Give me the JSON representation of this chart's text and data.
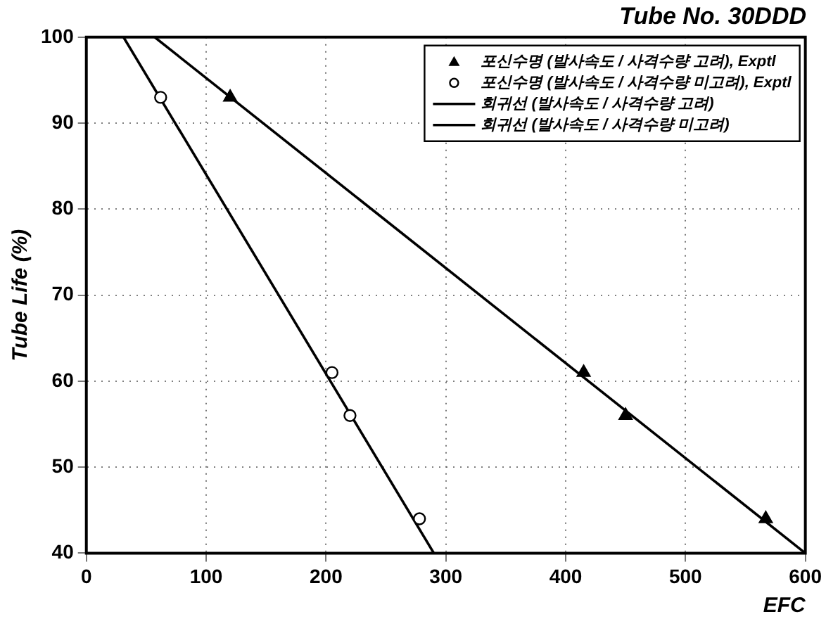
{
  "chart_data": {
    "type": "scatter",
    "title": "Tube No. 30DDD",
    "xlabel": "EFC",
    "ylabel": "Tube Life (%)",
    "xlim": [
      0,
      600
    ],
    "xticks": [
      0,
      100,
      200,
      300,
      400,
      500,
      600
    ],
    "ylim": [
      40,
      100
    ],
    "yticks": [
      40,
      50,
      60,
      70,
      80,
      90,
      100
    ],
    "grid": true,
    "legend": "top right",
    "series": [
      {
        "name": "포신수명 (발사속도 / 사격수량 고려), Exptl",
        "type": "scatter",
        "marker": "triangle",
        "color": "#000000",
        "x": [
          120,
          415,
          450,
          567
        ],
        "values": [
          93,
          61,
          56,
          44
        ]
      },
      {
        "name": "포신수명 (발사속도 / 사격수량 미고려), Exptl",
        "type": "scatter",
        "marker": "circle",
        "color": "#000000",
        "x": [
          62,
          205,
          220,
          278
        ],
        "values": [
          93,
          61,
          56,
          44
        ]
      },
      {
        "name": "회귀선 (발사속도 / 사격수량 고려)",
        "type": "line",
        "marker": "none",
        "color": "#000000",
        "x": [
          57,
          600
        ],
        "values": [
          100,
          40
        ]
      },
      {
        "name": "회귀선 (발사속도 / 사격수량 미고려)",
        "type": "line",
        "marker": "none",
        "color": "#000000",
        "x": [
          31,
          290
        ],
        "values": [
          100,
          40
        ]
      }
    ]
  }
}
